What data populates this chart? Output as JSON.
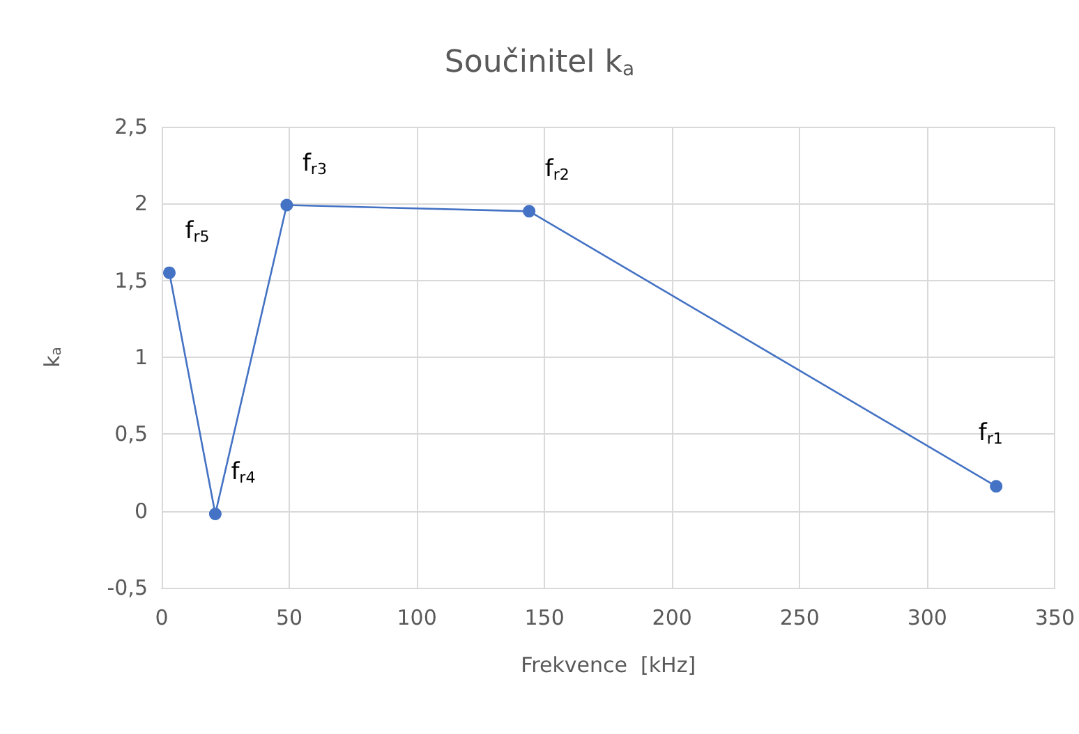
{
  "chart_data": {
    "type": "line",
    "title": "Součinitel k$_{a}$",
    "xlabel": "Frekvence  [kHz]",
    "ylabel": "k$_{a}$",
    "series": [
      {
        "color": "#4472c4",
        "x": [
          3,
          21,
          49,
          144,
          327
        ],
        "values": [
          1.55,
          -0.02,
          1.99,
          1.95,
          0.16
        ]
      }
    ],
    "xlim": [
      0,
      350
    ],
    "xticks": [
      0,
      50,
      100,
      150,
      200,
      250,
      300,
      350
    ],
    "ylim": [
      -0.5,
      2.5
    ],
    "yticks": [
      {
        "value": -0.5,
        "label": "-0,5"
      },
      0,
      {
        "value": 0.5,
        "label": "0,5"
      },
      1,
      {
        "value": 1.5,
        "label": "1,5"
      },
      2,
      {
        "value": 2.5,
        "label": "2,5"
      }
    ],
    "annotations": [
      {
        "text": "f$_{r5}$",
        "x": 3,
        "y": 1.55
      },
      {
        "text": "f$_{r4}$",
        "x": 21,
        "y": -0.02
      },
      {
        "text": "f$_{r3}$",
        "x": 49,
        "y": 1.99
      },
      {
        "text": "f$_{r2}$",
        "x": 144,
        "y": 1.95
      },
      {
        "text": "f$_{r1}$",
        "x": 327,
        "y": 0.16
      }
    ],
    "grid": true,
    "marker": "circle",
    "line_style": "solid"
  }
}
